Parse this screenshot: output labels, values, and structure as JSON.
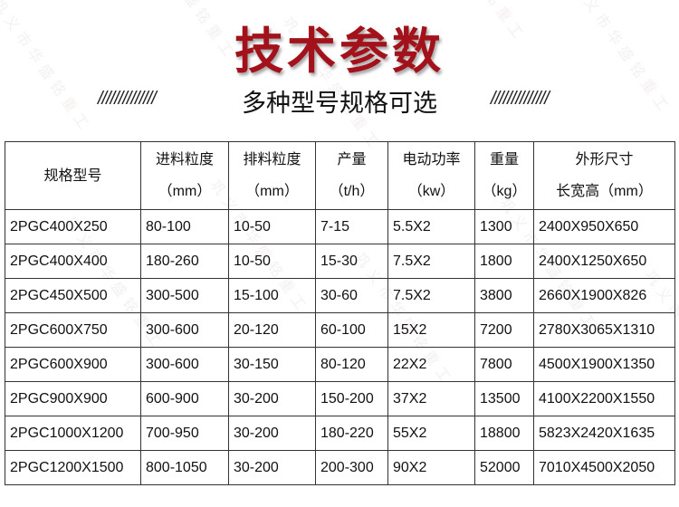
{
  "watermark": "巩义市华盛铭重工",
  "title": "技术参数",
  "subtitle": "多种型号规格可选",
  "decoration": "//////////////",
  "table": {
    "headers": [
      {
        "line1": "规格型号",
        "line2": ""
      },
      {
        "line1": "进料粒度",
        "line2": "（mm）"
      },
      {
        "line1": "排料粒度",
        "line2": "（mm）"
      },
      {
        "line1": "产量",
        "line2": "（t/h）"
      },
      {
        "line1": "电动功率",
        "line2": "（kw）"
      },
      {
        "line1": "重量",
        "line2": "（kg）"
      },
      {
        "line1": "外形尺寸",
        "line2": "长宽高（mm）"
      }
    ],
    "rows": [
      [
        "2PGC400X250",
        "80-100",
        "10-50",
        "7-15",
        "5.5X2",
        "1300",
        "2400X950X650"
      ],
      [
        "2PGC400X400",
        "180-260",
        "10-50",
        "15-30",
        "7.5X2",
        "1800",
        "2400X1250X650"
      ],
      [
        "2PGC450X500",
        "300-500",
        "15-100",
        "30-60",
        "7.5X2",
        "3800",
        "2660X1900X826"
      ],
      [
        "2PGC600X750",
        "300-600",
        "20-120",
        "60-100",
        "15X2",
        "7200",
        "2780X3065X1310"
      ],
      [
        "2PGC600X900",
        "300-600",
        "30-150",
        "80-120",
        "22X2",
        "7800",
        "4500X1900X1350"
      ],
      [
        "2PGC900X900",
        "600-900",
        "30-200",
        "150-200",
        "37X2",
        "13500",
        "4100X2200X1550"
      ],
      [
        "2PGC1000X1200",
        "700-950",
        "30-200",
        "180-220",
        "55X2",
        "18800",
        "5823X2420X1635"
      ],
      [
        "2PGC1200X1500",
        "800-1050",
        "30-200",
        "200-300",
        "90X2",
        "52000",
        "7010X4500X2050"
      ]
    ]
  },
  "colors": {
    "title": "#a3111a"
  }
}
